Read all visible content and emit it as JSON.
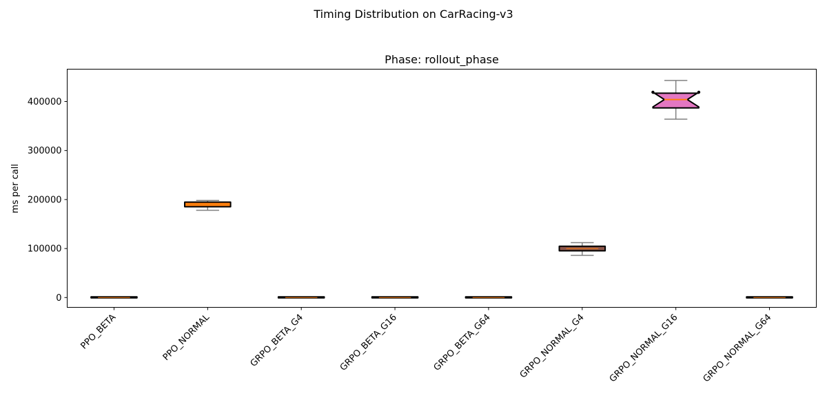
{
  "chart_data": {
    "type": "box",
    "suptitle": "Timing Distribution on CarRacing-v3",
    "title": "Phase: rollout_phase",
    "xlabel": "",
    "ylabel": "ms per call",
    "ylim": [
      -20000,
      466000
    ],
    "yticks": [
      0,
      100000,
      200000,
      300000,
      400000
    ],
    "ytick_labels": [
      "0",
      "100000",
      "200000",
      "300000",
      "400000"
    ],
    "categories": [
      "PPO_BETA",
      "PPO_NORMAL",
      "GRPO_BETA_G4",
      "GRPO_BETA_G16",
      "GRPO_BETA_G64",
      "GRPO_NORMAL_G4",
      "GRPO_NORMAL_G16",
      "GRPO_NORMAL_G64"
    ],
    "boxes": [
      {
        "whisker_low": 0,
        "q1": 0,
        "median": 0,
        "q3": 800,
        "whisker_high": 1000,
        "notch_low": 0,
        "notch_high": 800,
        "color": "#1f77b4"
      },
      {
        "whisker_low": 178000,
        "q1": 186000,
        "median": 190000,
        "q3": 194000,
        "whisker_high": 198000,
        "notch_low": 187500,
        "notch_high": 192500,
        "color": "#ff7f0e"
      },
      {
        "whisker_low": 0,
        "q1": 0,
        "median": 0,
        "q3": 800,
        "whisker_high": 1000,
        "notch_low": 0,
        "notch_high": 800,
        "color": "#2ca02c"
      },
      {
        "whisker_low": 0,
        "q1": 0,
        "median": 0,
        "q3": 800,
        "whisker_high": 1000,
        "notch_low": 0,
        "notch_high": 800,
        "color": "#d62728"
      },
      {
        "whisker_low": 0,
        "q1": 0,
        "median": 0,
        "q3": 800,
        "whisker_high": 1000,
        "notch_low": 0,
        "notch_high": 800,
        "color": "#9467bd"
      },
      {
        "whisker_low": 86000,
        "q1": 96000,
        "median": 100000,
        "q3": 104000,
        "whisker_high": 112000,
        "notch_low": 97500,
        "notch_high": 102500,
        "color": "#8c564b"
      },
      {
        "whisker_low": 364000,
        "q1": 387000,
        "median": 404000,
        "q3": 417000,
        "whisker_high": 443000,
        "notch_low": 389000,
        "notch_high": 419000,
        "color": "#e377c2"
      },
      {
        "whisker_low": 0,
        "q1": 0,
        "median": 0,
        "q3": 800,
        "whisker_high": 1000,
        "notch_low": 0,
        "notch_high": 800,
        "color": "#7f7f7f"
      }
    ],
    "median_color": "#ff7f0e",
    "whisker_color": "#808080",
    "box_edge_color": "#000000",
    "grid": false,
    "legend": "none"
  }
}
